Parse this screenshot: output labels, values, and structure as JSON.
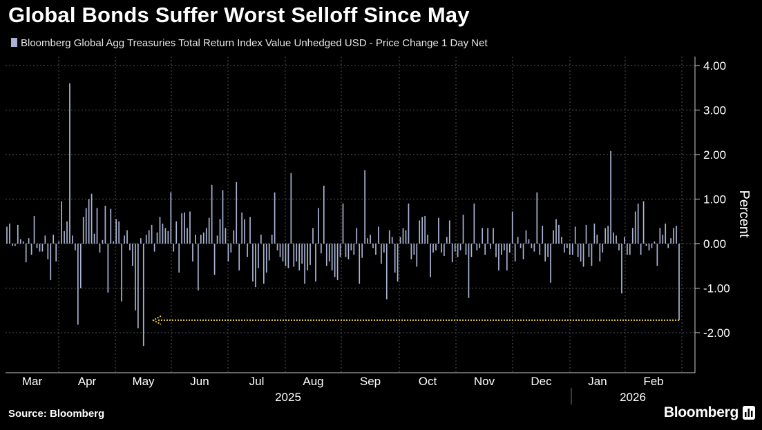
{
  "title": "Global Bonds Suffer Worst Selloff Since May",
  "legend": {
    "label": "Bloomberg Global Agg Treasuries Total Return Index Value Unhedged USD - Price Change 1 Day Net"
  },
  "source": "Source: Bloomberg",
  "brand": "Bloomberg",
  "brand_icon": "bar-chart-icon",
  "colors": {
    "background": "#000000",
    "bar": "#a9b3d4",
    "grid": "#555555",
    "annotation": "#f2d03d",
    "text": "#ffffff"
  },
  "chart_data": {
    "type": "bar",
    "title": "Global Bonds Suffer Worst Selloff Since May",
    "ylabel": "Percent",
    "ylim": [
      -2.9,
      4.2
    ],
    "yticks": [
      4,
      3,
      2,
      1,
      0,
      -1,
      -2
    ],
    "ytick_labels": [
      "4.00",
      "3.00",
      "2.00",
      "1.00",
      "0.00",
      "-1.00",
      "-2.00"
    ],
    "grid": true,
    "months": [
      "Mar",
      "Apr",
      "May",
      "Jun",
      "Jul",
      "Aug",
      "Sep",
      "Oct",
      "Nov",
      "Dec",
      "Jan",
      "Feb"
    ],
    "years": [
      "2025",
      "2026"
    ],
    "annotation": {
      "type": "arrow",
      "from_value": -1.72,
      "direction": "left",
      "points_to": "May"
    },
    "series": [
      {
        "name": "Bloomberg Global Agg Treasuries Total Return Index Value Unhedged USD - Price Change 1 Day Net",
        "values": [
          0.38,
          0.45,
          -0.05,
          -0.05,
          0.42,
          0.1,
          0.05,
          -0.42,
          0.12,
          -0.25,
          0.62,
          -0.1,
          -0.18,
          -0.18,
          0.18,
          -0.35,
          -0.82,
          0.2,
          -0.4,
          0.05,
          0.95,
          0.28,
          0.5,
          3.6,
          0.18,
          -0.15,
          -1.82,
          -1.0,
          0.6,
          0.8,
          1.0,
          1.12,
          0.22,
          0.8,
          -0.2,
          0.08,
          0.85,
          -1.1,
          0.78,
          0.05,
          0.55,
          0.5,
          -1.3,
          0.18,
          0.3,
          -0.15,
          -0.5,
          -1.5,
          -1.9,
          0.12,
          -2.3,
          0.2,
          0.3,
          0.42,
          -0.18,
          0.25,
          0.6,
          0.45,
          0.35,
          0.28,
          1.15,
          -0.18,
          0.5,
          -0.65,
          0.68,
          0.7,
          0.35,
          0.72,
          -0.4,
          0.2,
          -1.05,
          0.2,
          0.25,
          0.35,
          0.58,
          1.32,
          -0.7,
          0.18,
          0.55,
          1.2,
          0.35,
          -0.4,
          -0.2,
          0.3,
          1.38,
          -0.6,
          0.7,
          0.55,
          -0.3,
          0.6,
          -0.85,
          -0.98,
          -0.55,
          0.2,
          -0.9,
          -0.65,
          -0.38,
          0.2,
          1.15,
          -0.15,
          -0.3,
          -0.4,
          -0.5,
          -0.55,
          1.58,
          -0.52,
          -0.4,
          -0.6,
          -0.45,
          -0.9,
          -0.6,
          -0.48,
          0.35,
          -0.85,
          0.8,
          -0.22,
          1.3,
          -0.5,
          -0.4,
          -0.6,
          -0.75,
          -0.82,
          -0.3,
          0.9,
          -0.3,
          -0.35,
          -0.15,
          -0.25,
          0.35,
          -0.9,
          -0.32,
          1.65,
          0.12,
          0.2,
          -0.1,
          -0.25,
          0.38,
          -0.45,
          -0.2,
          -1.25,
          0.3,
          0.15,
          -0.65,
          -0.85,
          0.15,
          0.35,
          0.3,
          0.9,
          -0.35,
          -0.25,
          -0.52,
          0.52,
          0.6,
          0.62,
          0.2,
          -0.75,
          -0.2,
          -0.15,
          0.58,
          -0.2,
          -0.28,
          0.15,
          0.52,
          -0.42,
          -0.18,
          -0.3,
          -0.15,
          0.65,
          -0.25,
          -1.22,
          -0.3,
          0.9,
          -0.15,
          -0.1,
          0.35,
          -0.25,
          0.35,
          -0.12,
          0.35,
          -0.3,
          -0.6,
          -0.25,
          -0.15,
          -0.6,
          -0.2,
          0.72,
          -0.4,
          0.15,
          -0.1,
          -0.35,
          0.3,
          0.1,
          -0.1,
          -0.18,
          1.15,
          -0.25,
          0.4,
          -0.4,
          -0.3,
          -0.88,
          0.3,
          0.55,
          0.42,
          0.15,
          -0.2,
          -0.1,
          -0.25,
          -0.25,
          0.38,
          -0.3,
          -0.4,
          -0.52,
          0.42,
          -0.3,
          -0.5,
          0.45,
          0.2,
          -0.4,
          -0.2,
          0.35,
          0.4,
          2.08,
          0.25,
          0.18,
          -0.15,
          -1.12,
          0.15,
          -0.25,
          -0.25,
          0.35,
          0.72,
          0.9,
          -0.25,
          0.95,
          -0.05,
          -0.15,
          -0.1,
          0.05,
          -0.5,
          0.35,
          0.2,
          0.45,
          -0.1,
          0.12,
          0.35,
          0.4,
          -1.72
        ]
      }
    ]
  }
}
